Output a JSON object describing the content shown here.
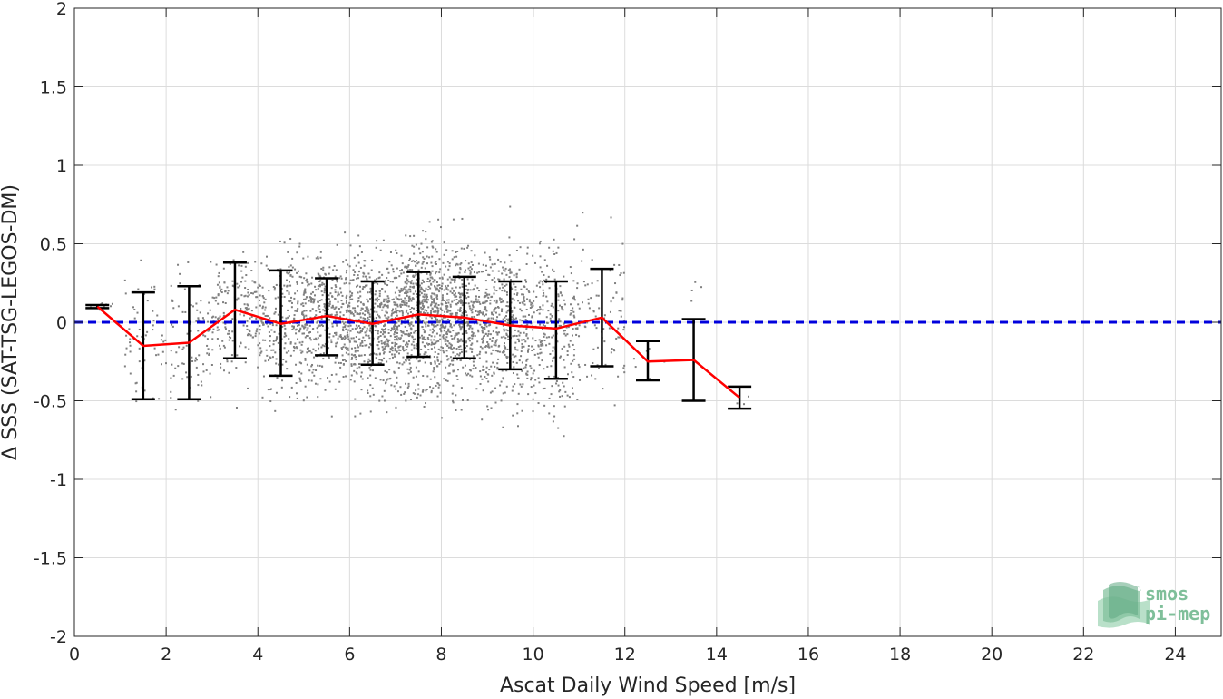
{
  "chart_data": {
    "type": "scatter",
    "title": "",
    "xlabel": "Ascat Daily Wind Speed [m/s]",
    "ylabel": "Δ SSS (SAT-TSG-LEGOS-DM)",
    "xlim": [
      0,
      25
    ],
    "ylim": [
      -2,
      2
    ],
    "xticks": [
      0,
      2,
      4,
      6,
      8,
      10,
      12,
      14,
      16,
      18,
      20,
      22,
      24
    ],
    "yticks": [
      2,
      1.5,
      1,
      0.5,
      0,
      -0.5,
      -1,
      -1.5,
      -2
    ],
    "ytick_labels": [
      "2",
      "1.5",
      "1",
      "0.5",
      "0",
      "-0.5",
      "-1",
      "-1.5",
      "-2"
    ],
    "grid": true,
    "reference_line": {
      "y": 0,
      "style": "dashed",
      "color": "#0000dd"
    },
    "scatter_color": "#808080",
    "scatter_density": [
      {
        "x_range": [
          0.3,
          0.9
        ],
        "count": 8,
        "mean": 0.1,
        "sd": 0.02
      },
      {
        "x_range": [
          1.1,
          2.0
        ],
        "count": 60,
        "mean": -0.12,
        "sd": 0.22
      },
      {
        "x_range": [
          2.1,
          3.0
        ],
        "count": 90,
        "mean": -0.1,
        "sd": 0.22
      },
      {
        "x_range": [
          3.0,
          4.0
        ],
        "count": 170,
        "mean": 0.07,
        "sd": 0.2
      },
      {
        "x_range": [
          4.0,
          5.0
        ],
        "count": 260,
        "mean": 0.0,
        "sd": 0.22
      },
      {
        "x_range": [
          5.0,
          6.0
        ],
        "count": 380,
        "mean": 0.04,
        "sd": 0.2
      },
      {
        "x_range": [
          6.0,
          7.0
        ],
        "count": 480,
        "mean": 0.0,
        "sd": 0.22
      },
      {
        "x_range": [
          7.0,
          8.0
        ],
        "count": 620,
        "mean": 0.05,
        "sd": 0.23
      },
      {
        "x_range": [
          8.0,
          9.0
        ],
        "count": 520,
        "mean": 0.03,
        "sd": 0.22
      },
      {
        "x_range": [
          9.0,
          10.0
        ],
        "count": 380,
        "mean": -0.02,
        "sd": 0.24
      },
      {
        "x_range": [
          10.0,
          11.0
        ],
        "count": 240,
        "mean": -0.04,
        "sd": 0.26
      },
      {
        "x_range": [
          11.0,
          12.0
        ],
        "count": 90,
        "mean": 0.03,
        "sd": 0.25
      },
      {
        "x_range": [
          12.2,
          12.9
        ],
        "count": 6,
        "mean": -0.25,
        "sd": 0.08
      },
      {
        "x_range": [
          13.3,
          13.7
        ],
        "count": 4,
        "mean": 0.2,
        "sd": 0.05
      },
      {
        "x_range": [
          14.3,
          14.8
        ],
        "count": 3,
        "mean": -0.5,
        "sd": 0.03
      }
    ],
    "series": [
      {
        "name": "mean",
        "color": "#ff0000",
        "x": [
          0.5,
          1.5,
          2.5,
          3.5,
          4.5,
          5.5,
          6.5,
          7.5,
          8.5,
          9.5,
          10.5,
          11.5,
          12.5,
          13.5,
          14.5
        ],
        "y": [
          0.1,
          -0.15,
          -0.13,
          0.08,
          -0.01,
          0.04,
          -0.01,
          0.05,
          0.03,
          -0.02,
          -0.04,
          0.03,
          -0.25,
          -0.24,
          -0.48
        ]
      },
      {
        "name": "std",
        "color": "#000000",
        "x": [
          0.5,
          1.5,
          2.5,
          3.5,
          4.5,
          5.5,
          6.5,
          7.5,
          8.5,
          9.5,
          10.5,
          11.5,
          12.5,
          13.5,
          14.5
        ],
        "y_low": [
          0.09,
          -0.49,
          -0.49,
          -0.23,
          -0.34,
          -0.21,
          -0.27,
          -0.22,
          -0.23,
          -0.3,
          -0.36,
          -0.28,
          -0.37,
          -0.5,
          -0.55
        ],
        "y_high": [
          0.11,
          0.19,
          0.23,
          0.38,
          0.33,
          0.28,
          0.26,
          0.32,
          0.29,
          0.26,
          0.26,
          0.34,
          -0.12,
          0.02,
          -0.41
        ]
      }
    ]
  },
  "logo": {
    "line1": "smos",
    "line2": "pi-mep",
    "color": "#7fbf9a"
  }
}
